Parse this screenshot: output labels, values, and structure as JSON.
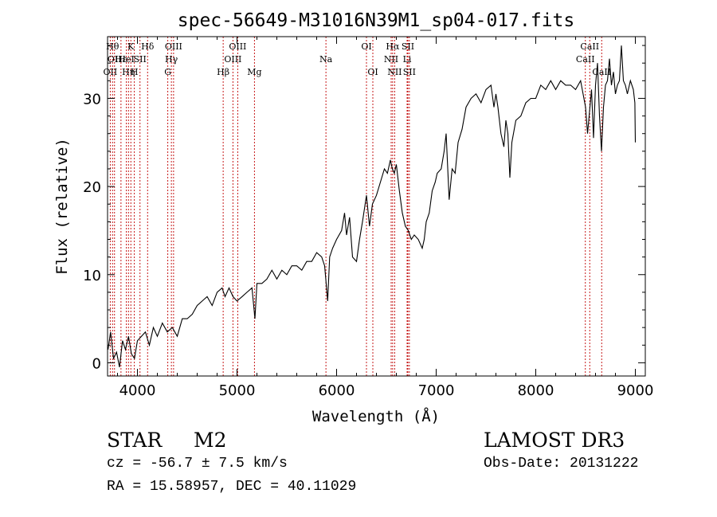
{
  "chart_data": {
    "type": "line",
    "title": "spec-56649-M31016N39M1_sp04-017.fits",
    "xlabel": "Wavelength (Å)",
    "ylabel": "Flux (relative)",
    "xlim": [
      3700,
      9100
    ],
    "ylim": [
      -1.5,
      37
    ],
    "x_ticks": [
      4000,
      5000,
      6000,
      7000,
      8000,
      9000
    ],
    "x_tick_labels": [
      "4000",
      "5000",
      "6000",
      "7000",
      "8000",
      "9000"
    ],
    "y_ticks": [
      0,
      10,
      20,
      30
    ],
    "y_tick_labels": [
      "0",
      "10",
      "20",
      "30"
    ],
    "grid": false,
    "line_color": "#000000",
    "marker_color": "#c00000",
    "series": [
      {
        "name": "spectrum",
        "x": [
          3705,
          3730,
          3760,
          3790,
          3820,
          3850,
          3880,
          3910,
          3940,
          3970,
          4000,
          4040,
          4080,
          4120,
          4160,
          4200,
          4250,
          4300,
          4350,
          4400,
          4450,
          4500,
          4550,
          4600,
          4650,
          4700,
          4750,
          4800,
          4850,
          4880,
          4920,
          4960,
          5000,
          5050,
          5100,
          5150,
          5180,
          5200,
          5250,
          5300,
          5350,
          5400,
          5450,
          5500,
          5550,
          5600,
          5650,
          5700,
          5750,
          5800,
          5850,
          5880,
          5895,
          5910,
          5930,
          5960,
          6000,
          6050,
          6080,
          6100,
          6130,
          6160,
          6200,
          6230,
          6260,
          6300,
          6330,
          6360,
          6400,
          6440,
          6480,
          6510,
          6540,
          6560,
          6580,
          6600,
          6630,
          6660,
          6690,
          6720,
          6750,
          6780,
          6820,
          6860,
          6880,
          6900,
          6930,
          6960,
          6990,
          7010,
          7050,
          7080,
          7100,
          7130,
          7160,
          7190,
          7220,
          7260,
          7300,
          7350,
          7400,
          7450,
          7500,
          7550,
          7580,
          7600,
          7620,
          7650,
          7680,
          7700,
          7720,
          7740,
          7760,
          7800,
          7850,
          7900,
          7950,
          8000,
          8050,
          8100,
          8150,
          8200,
          8250,
          8300,
          8350,
          8400,
          8450,
          8500,
          8520,
          8540,
          8560,
          8580,
          8600,
          8620,
          8640,
          8660,
          8680,
          8700,
          8720,
          8740,
          8760,
          8780,
          8800,
          8820,
          8840,
          8860,
          8880,
          8900,
          8920,
          8950,
          8980,
          8995,
          9000
        ],
        "y": [
          1.5,
          3.5,
          0.5,
          1.2,
          -0.5,
          2.5,
          1.5,
          3.0,
          1.0,
          0.5,
          2.5,
          3.0,
          3.5,
          2.0,
          4.0,
          3.0,
          4.5,
          3.5,
          4.0,
          3.0,
          5.0,
          5.0,
          5.5,
          6.5,
          7.0,
          7.5,
          6.5,
          8.0,
          8.5,
          7.5,
          8.5,
          7.5,
          7.0,
          7.5,
          8.0,
          8.5,
          5.0,
          9.0,
          9.0,
          9.5,
          10.5,
          9.5,
          10.5,
          10.0,
          11.0,
          11.0,
          10.5,
          11.5,
          11.5,
          12.5,
          12.0,
          11.0,
          9.0,
          7.0,
          12.0,
          13.0,
          14.0,
          15.0,
          17.0,
          14.5,
          16.5,
          12.0,
          11.5,
          14.0,
          16.0,
          19.0,
          15.5,
          18.0,
          19.0,
          20.5,
          22.0,
          21.5,
          23.0,
          22.0,
          21.5,
          22.5,
          19.5,
          17.0,
          15.5,
          15.0,
          14.0,
          14.5,
          14.0,
          13.0,
          14.0,
          16.0,
          17.0,
          19.5,
          20.5,
          21.5,
          22.0,
          24.0,
          26.0,
          18.5,
          22.0,
          21.5,
          25.0,
          26.5,
          29.0,
          30.0,
          30.5,
          29.5,
          31.0,
          31.5,
          29.0,
          30.5,
          29.0,
          26.0,
          24.5,
          27.5,
          26.0,
          21.0,
          25.0,
          27.5,
          28.0,
          29.5,
          30.0,
          30.0,
          31.5,
          31.0,
          32.0,
          31.0,
          32.0,
          31.5,
          31.5,
          31.0,
          32.0,
          29.0,
          26.0,
          28.5,
          31.0,
          25.5,
          31.5,
          34.0,
          28.0,
          24.0,
          29.0,
          31.5,
          32.0,
          34.5,
          31.5,
          33.0,
          30.5,
          31.5,
          32.0,
          36.0,
          32.0,
          31.5,
          30.5,
          32.0,
          31.0,
          29.5,
          25.0
        ]
      }
    ],
    "lines": [
      {
        "x": 3727,
        "row": 2,
        "label": "OII"
      },
      {
        "x": 3750,
        "row": 0,
        "label": "Hθ"
      },
      {
        "x": 3770,
        "row": 1,
        "label": "OII"
      },
      {
        "x": 3835,
        "row": 1,
        "label": "Hε"
      },
      {
        "x": 3889,
        "row": 1,
        "label": "HeI"
      },
      {
        "x": 3910,
        "row": 2,
        "label": "Hη"
      },
      {
        "x": 3934,
        "row": 0,
        "label": "K"
      },
      {
        "x": 3969,
        "row": 2,
        "label": "H"
      },
      {
        "x": 4026,
        "row": 1,
        "label": "SII"
      },
      {
        "x": 4102,
        "row": 0,
        "label": "Hδ"
      },
      {
        "x": 4305,
        "row": 2,
        "label": "G"
      },
      {
        "x": 4341,
        "row": 1,
        "label": "Hγ"
      },
      {
        "x": 4363,
        "row": 0,
        "label": "OIII"
      },
      {
        "x": 4861,
        "row": 2,
        "label": "Hβ"
      },
      {
        "x": 4959,
        "row": 1,
        "label": "OIII"
      },
      {
        "x": 5007,
        "row": 0,
        "label": "OIII"
      },
      {
        "x": 5175,
        "row": 2,
        "label": "Mg"
      },
      {
        "x": 5893,
        "row": 1,
        "label": "Na"
      },
      {
        "x": 6300,
        "row": 0,
        "label": "OI"
      },
      {
        "x": 6364,
        "row": 2,
        "label": "OI"
      },
      {
        "x": 6548,
        "row": 1,
        "label": "NII"
      },
      {
        "x": 6563,
        "row": 0,
        "label": "Hα"
      },
      {
        "x": 6583,
        "row": 2,
        "label": "NII"
      },
      {
        "x": 6708,
        "row": 1,
        "label": "Li"
      },
      {
        "x": 6716,
        "row": 0,
        "label": "SII"
      },
      {
        "x": 6731,
        "row": 2,
        "label": "SII"
      },
      {
        "x": 8498,
        "row": 1,
        "label": "CaII"
      },
      {
        "x": 8542,
        "row": 0,
        "label": "CaII"
      },
      {
        "x": 8662,
        "row": 2,
        "label": "CaII"
      }
    ]
  },
  "info": {
    "class": "STAR",
    "subclass": "M2",
    "survey": "LAMOST DR3",
    "cz": "cz = -56.7 ± 7.5 km/s",
    "obs_date": "Obs-Date: 20131222",
    "coords": "RA =  15.58957, DEC =  40.11029"
  }
}
